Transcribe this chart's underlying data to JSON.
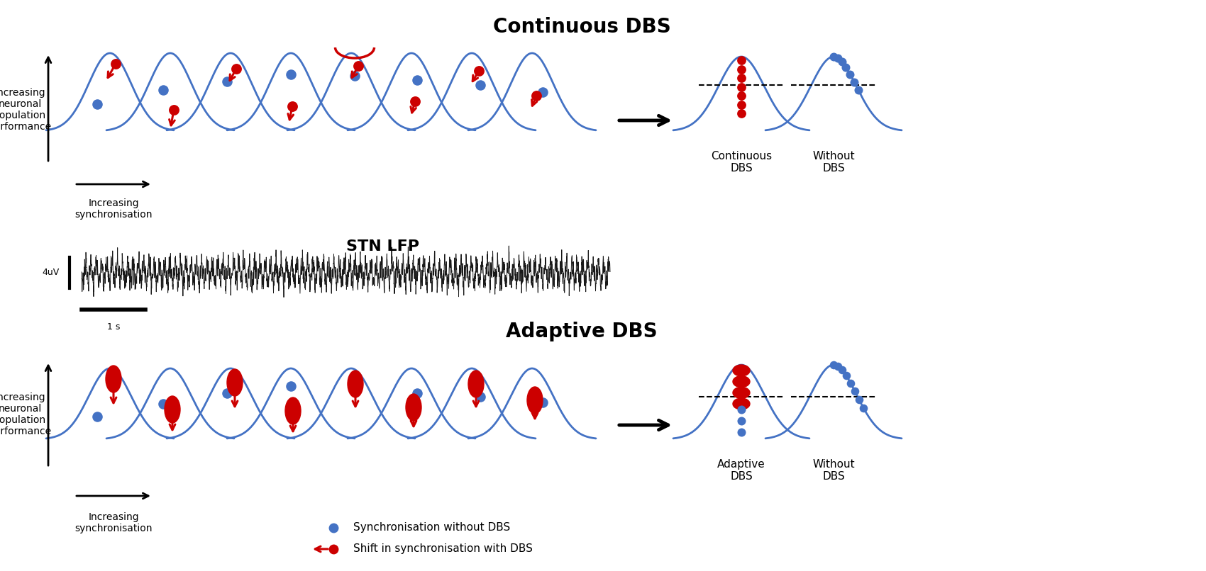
{
  "title_continuous": "Continuous DBS",
  "title_adaptive": "Adaptive DBS",
  "title_stn": "STN LFP",
  "label_increasing_neuronal": "Increasing\nneuronal\npopulation\nperformance",
  "label_increasing_sync": "Increasing\nsynchronisation",
  "label_continuous_dbs": "Continuous\nDBS",
  "label_without_dbs_top": "Without\nDBS",
  "label_adaptive_dbs": "Adaptive\nDBS",
  "label_without_dbs_bottom": "Without\nDBS",
  "legend_blue": "Synchronisation without DBS",
  "legend_red": "Shift in synchronisation with DBS",
  "label_4uv": "4uV",
  "label_1s": "1 s",
  "blue_color": "#4472C4",
  "red_color": "#CC0000",
  "background_color": "#FFFFFF",
  "text_color": "#000000"
}
